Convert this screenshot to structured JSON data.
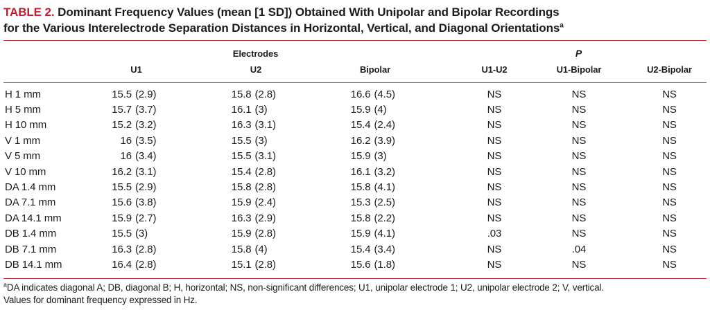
{
  "colors": {
    "title_red": "#c31e2f",
    "rule_red": "#c8393f",
    "text": "#1b1b1b"
  },
  "title": {
    "label": "TABLE 2.",
    "line1": "Dominant Frequency Values (mean [1 SD]) Obtained With Unipolar and Bipolar Recordings",
    "line2": "for the Various Interelectrode Separation Distances in Horizontal, Vertical, and Diagonal Orientations",
    "superscript": "a"
  },
  "table": {
    "group_electrodes": "Electrodes",
    "group_p": "P",
    "columns": [
      "U1",
      "U2",
      "Bipolar",
      "U1-U2",
      "U1-Bipolar",
      "U2-Bipolar"
    ],
    "rows": [
      {
        "label": "H 1 mm",
        "u1": [
          "15.5",
          "(2.9)"
        ],
        "u2": [
          "15.8",
          "(2.8)"
        ],
        "bipolar": [
          "16.6",
          "(4.5)"
        ],
        "p": [
          "NS",
          "NS",
          "NS"
        ]
      },
      {
        "label": "H 5 mm",
        "u1": [
          "15.7",
          "(3.7)"
        ],
        "u2": [
          "16.1",
          "(3)"
        ],
        "bipolar": [
          "15.9",
          "(4)"
        ],
        "p": [
          "NS",
          "NS",
          "NS"
        ]
      },
      {
        "label": "H 10 mm",
        "u1": [
          "15.2",
          "(3.2)"
        ],
        "u2": [
          "16.3",
          "(3.1)"
        ],
        "bipolar": [
          "15.4",
          "(2.4)"
        ],
        "p": [
          "NS",
          "NS",
          "NS"
        ]
      },
      {
        "label": "V 1 mm",
        "u1": [
          "16",
          "(3.5)"
        ],
        "u2": [
          "15.5",
          "(3)"
        ],
        "bipolar": [
          "16.2",
          "(3.9)"
        ],
        "p": [
          "NS",
          "NS",
          "NS"
        ]
      },
      {
        "label": "V 5 mm",
        "u1": [
          "16",
          "(3.4)"
        ],
        "u2": [
          "15.5",
          "(3.1)"
        ],
        "bipolar": [
          "15.9",
          "(3)"
        ],
        "p": [
          "NS",
          "NS",
          "NS"
        ]
      },
      {
        "label": "V 10 mm",
        "u1": [
          "16.2",
          "(3.1)"
        ],
        "u2": [
          "15.4",
          "(2.8)"
        ],
        "bipolar": [
          "16.1",
          "(3.2)"
        ],
        "p": [
          "NS",
          "NS",
          "NS"
        ]
      },
      {
        "label": "DA 1.4 mm",
        "u1": [
          "15.5",
          "(2.9)"
        ],
        "u2": [
          "15.8",
          "(2.8)"
        ],
        "bipolar": [
          "15.8",
          "(4.1)"
        ],
        "p": [
          "NS",
          "NS",
          "NS"
        ]
      },
      {
        "label": "DA 7.1 mm",
        "u1": [
          "15.6",
          "(3.8)"
        ],
        "u2": [
          "15.9",
          "(2.4)"
        ],
        "bipolar": [
          "15.3",
          "(2.5)"
        ],
        "p": [
          "NS",
          "NS",
          "NS"
        ]
      },
      {
        "label": "DA 14.1 mm",
        "u1": [
          "15.9",
          "(2.7)"
        ],
        "u2": [
          "16.3",
          "(2.9)"
        ],
        "bipolar": [
          "15.8",
          "(2.2)"
        ],
        "p": [
          "NS",
          "NS",
          "NS"
        ]
      },
      {
        "label": "DB 1.4 mm",
        "u1": [
          "15.5",
          "(3)"
        ],
        "u2": [
          "15.9",
          "(2.8)"
        ],
        "bipolar": [
          "15.9",
          "(4.1)"
        ],
        "p": [
          ".03",
          "NS",
          "NS"
        ]
      },
      {
        "label": "DB 7.1 mm",
        "u1": [
          "16.3",
          "(2.8)"
        ],
        "u2": [
          "15.8",
          "(4)"
        ],
        "bipolar": [
          "15.4",
          "(3.4)"
        ],
        "p": [
          "NS",
          ".04",
          "NS"
        ]
      },
      {
        "label": "DB 14.1 mm",
        "u1": [
          "16.4",
          "(2.8)"
        ],
        "u2": [
          "15.1",
          "(2.8)"
        ],
        "bipolar": [
          "15.6",
          "(1.8)"
        ],
        "p": [
          "NS",
          "NS",
          "NS"
        ]
      }
    ]
  },
  "footnote": {
    "superscript": "a",
    "line1": "DA indicates diagonal A; DB, diagonal B; H, horizontal; NS, non-significant differences; U1, unipolar electrode 1; U2, unipolar electrode 2; V, vertical.",
    "line2": "Values for dominant frequency expressed in Hz."
  }
}
